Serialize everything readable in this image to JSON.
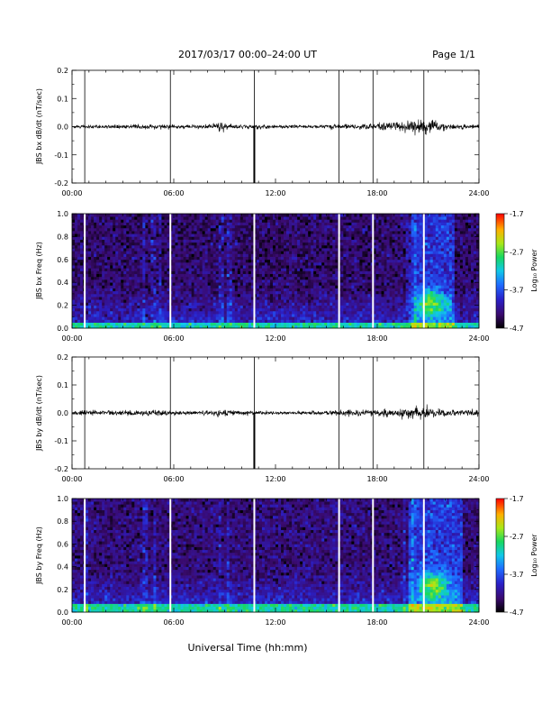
{
  "header": {
    "title": "2017/03/17  00:00–24:00 UT",
    "page": "Page 1/1"
  },
  "footer": {
    "xlabel": "Universal Time (hh:mm)"
  },
  "colors": {
    "trace": "#000000",
    "gap_marker_line": "#000000",
    "gap_marker_spectrogram": "#ffffff"
  },
  "chart_data": [
    {
      "type": "line",
      "ylabel": "JBS bx dB/dt (nT/sec)",
      "x_unit": "hours UT",
      "xlim": [
        0,
        24
      ],
      "ylim": [
        -0.2,
        0.2
      ],
      "xticks": [
        "00:00",
        "06:00",
        "12:00",
        "18:00",
        "24:00"
      ],
      "yticks": [
        "-0.2",
        "-0.1",
        "0.0",
        "0.1",
        "0.2"
      ],
      "gap_markers_x": [
        0.75,
        5.8,
        10.75,
        15.75,
        17.75,
        20.75
      ],
      "spike_x": 10.75,
      "spike_min": -0.2,
      "series": [
        {
          "x": [
            0,
            1,
            2,
            3,
            4,
            5,
            6,
            7,
            8,
            8.5,
            9,
            9.5,
            10,
            11,
            12,
            13,
            14,
            15,
            16,
            17,
            18,
            19,
            20,
            20.5,
            21,
            21.5,
            22,
            23,
            24
          ],
          "amplitude": [
            0.007,
            0.008,
            0.008,
            0.009,
            0.01,
            0.011,
            0.009,
            0.008,
            0.009,
            0.018,
            0.022,
            0.01,
            0.009,
            0.009,
            0.008,
            0.008,
            0.008,
            0.009,
            0.01,
            0.012,
            0.015,
            0.022,
            0.028,
            0.035,
            0.03,
            0.022,
            0.016,
            0.013,
            0.012
          ]
        }
      ]
    },
    {
      "type": "heatmap",
      "ylabel": "JBS bx Freq (Hz)",
      "xlim": [
        0,
        24
      ],
      "ylim": [
        0,
        1.0
      ],
      "xticks": [
        "00:00",
        "06:00",
        "12:00",
        "18:00",
        "24:00"
      ],
      "yticks": [
        "0.0",
        "0.2",
        "0.4",
        "0.6",
        "0.8",
        "1.0"
      ],
      "colorbar": {
        "label": "Log₁₀ Power",
        "ticks": [
          "-4.7",
          "-3.7",
          "-2.7",
          "-1.7"
        ],
        "range": [
          -4.7,
          -1.7
        ]
      },
      "gap_markers_x": [
        0.75,
        5.8,
        10.75,
        15.75,
        17.75,
        20.75
      ],
      "features": {
        "background_level": -4.35,
        "low_freq_band_hz": 0.05,
        "hot_spot": {
          "x": 21.2,
          "f": 0.22,
          "level": -3.0
        },
        "activity_hours": [
          20.0,
          22.5
        ],
        "streaks_x": [
          4.2,
          4.8,
          5.2,
          8.8,
          9.3,
          19.8,
          20.2
        ]
      }
    },
    {
      "type": "line",
      "ylabel": "JBS by dB/dt (nT/sec)",
      "x_unit": "hours UT",
      "xlim": [
        0,
        24
      ],
      "ylim": [
        -0.2,
        0.2
      ],
      "xticks": [
        "00:00",
        "06:00",
        "12:00",
        "18:00",
        "24:00"
      ],
      "yticks": [
        "-0.2",
        "-0.1",
        "0.0",
        "0.1",
        "0.2"
      ],
      "gap_markers_x": [
        0.75,
        5.8,
        10.75,
        15.75,
        17.75,
        20.75
      ],
      "spike_x": 10.75,
      "spike_min": -0.2,
      "series": [
        {
          "x": [
            0,
            1,
            2,
            3,
            4,
            5,
            6,
            7,
            8,
            8.5,
            9,
            9.5,
            10,
            11,
            12,
            13,
            14,
            15,
            16,
            17,
            18,
            19,
            20,
            20.5,
            21,
            21.5,
            22,
            23,
            24
          ],
          "amplitude": [
            0.012,
            0.012,
            0.011,
            0.012,
            0.013,
            0.014,
            0.01,
            0.009,
            0.01,
            0.016,
            0.015,
            0.012,
            0.01,
            0.008,
            0.007,
            0.007,
            0.008,
            0.011,
            0.014,
            0.015,
            0.016,
            0.02,
            0.024,
            0.028,
            0.025,
            0.02,
            0.016,
            0.013,
            0.012
          ]
        }
      ]
    },
    {
      "type": "heatmap",
      "ylabel": "JBS by Freq (Hz)",
      "xlim": [
        0,
        24
      ],
      "ylim": [
        0,
        1.0
      ],
      "xticks": [
        "00:00",
        "06:00",
        "12:00",
        "18:00",
        "24:00"
      ],
      "yticks": [
        "0.0",
        "0.2",
        "0.4",
        "0.6",
        "0.8",
        "1.0"
      ],
      "colorbar": {
        "label": "Log₁₀ Power",
        "ticks": [
          "-4.7",
          "-3.7",
          "-2.7",
          "-1.7"
        ],
        "range": [
          -4.7,
          -1.7
        ]
      },
      "gap_markers_x": [
        0.75,
        5.8,
        10.75,
        15.75,
        17.75,
        20.75
      ],
      "features": {
        "background_level": -4.3,
        "low_freq_band_hz": 0.07,
        "hot_spot": {
          "x": 21.3,
          "f": 0.24,
          "level": -2.9
        },
        "activity_hours": [
          19.8,
          23.0
        ],
        "streaks_x": [
          0.9,
          4.3,
          4.9,
          8.7,
          9.2,
          19.6,
          20.1
        ]
      }
    }
  ]
}
